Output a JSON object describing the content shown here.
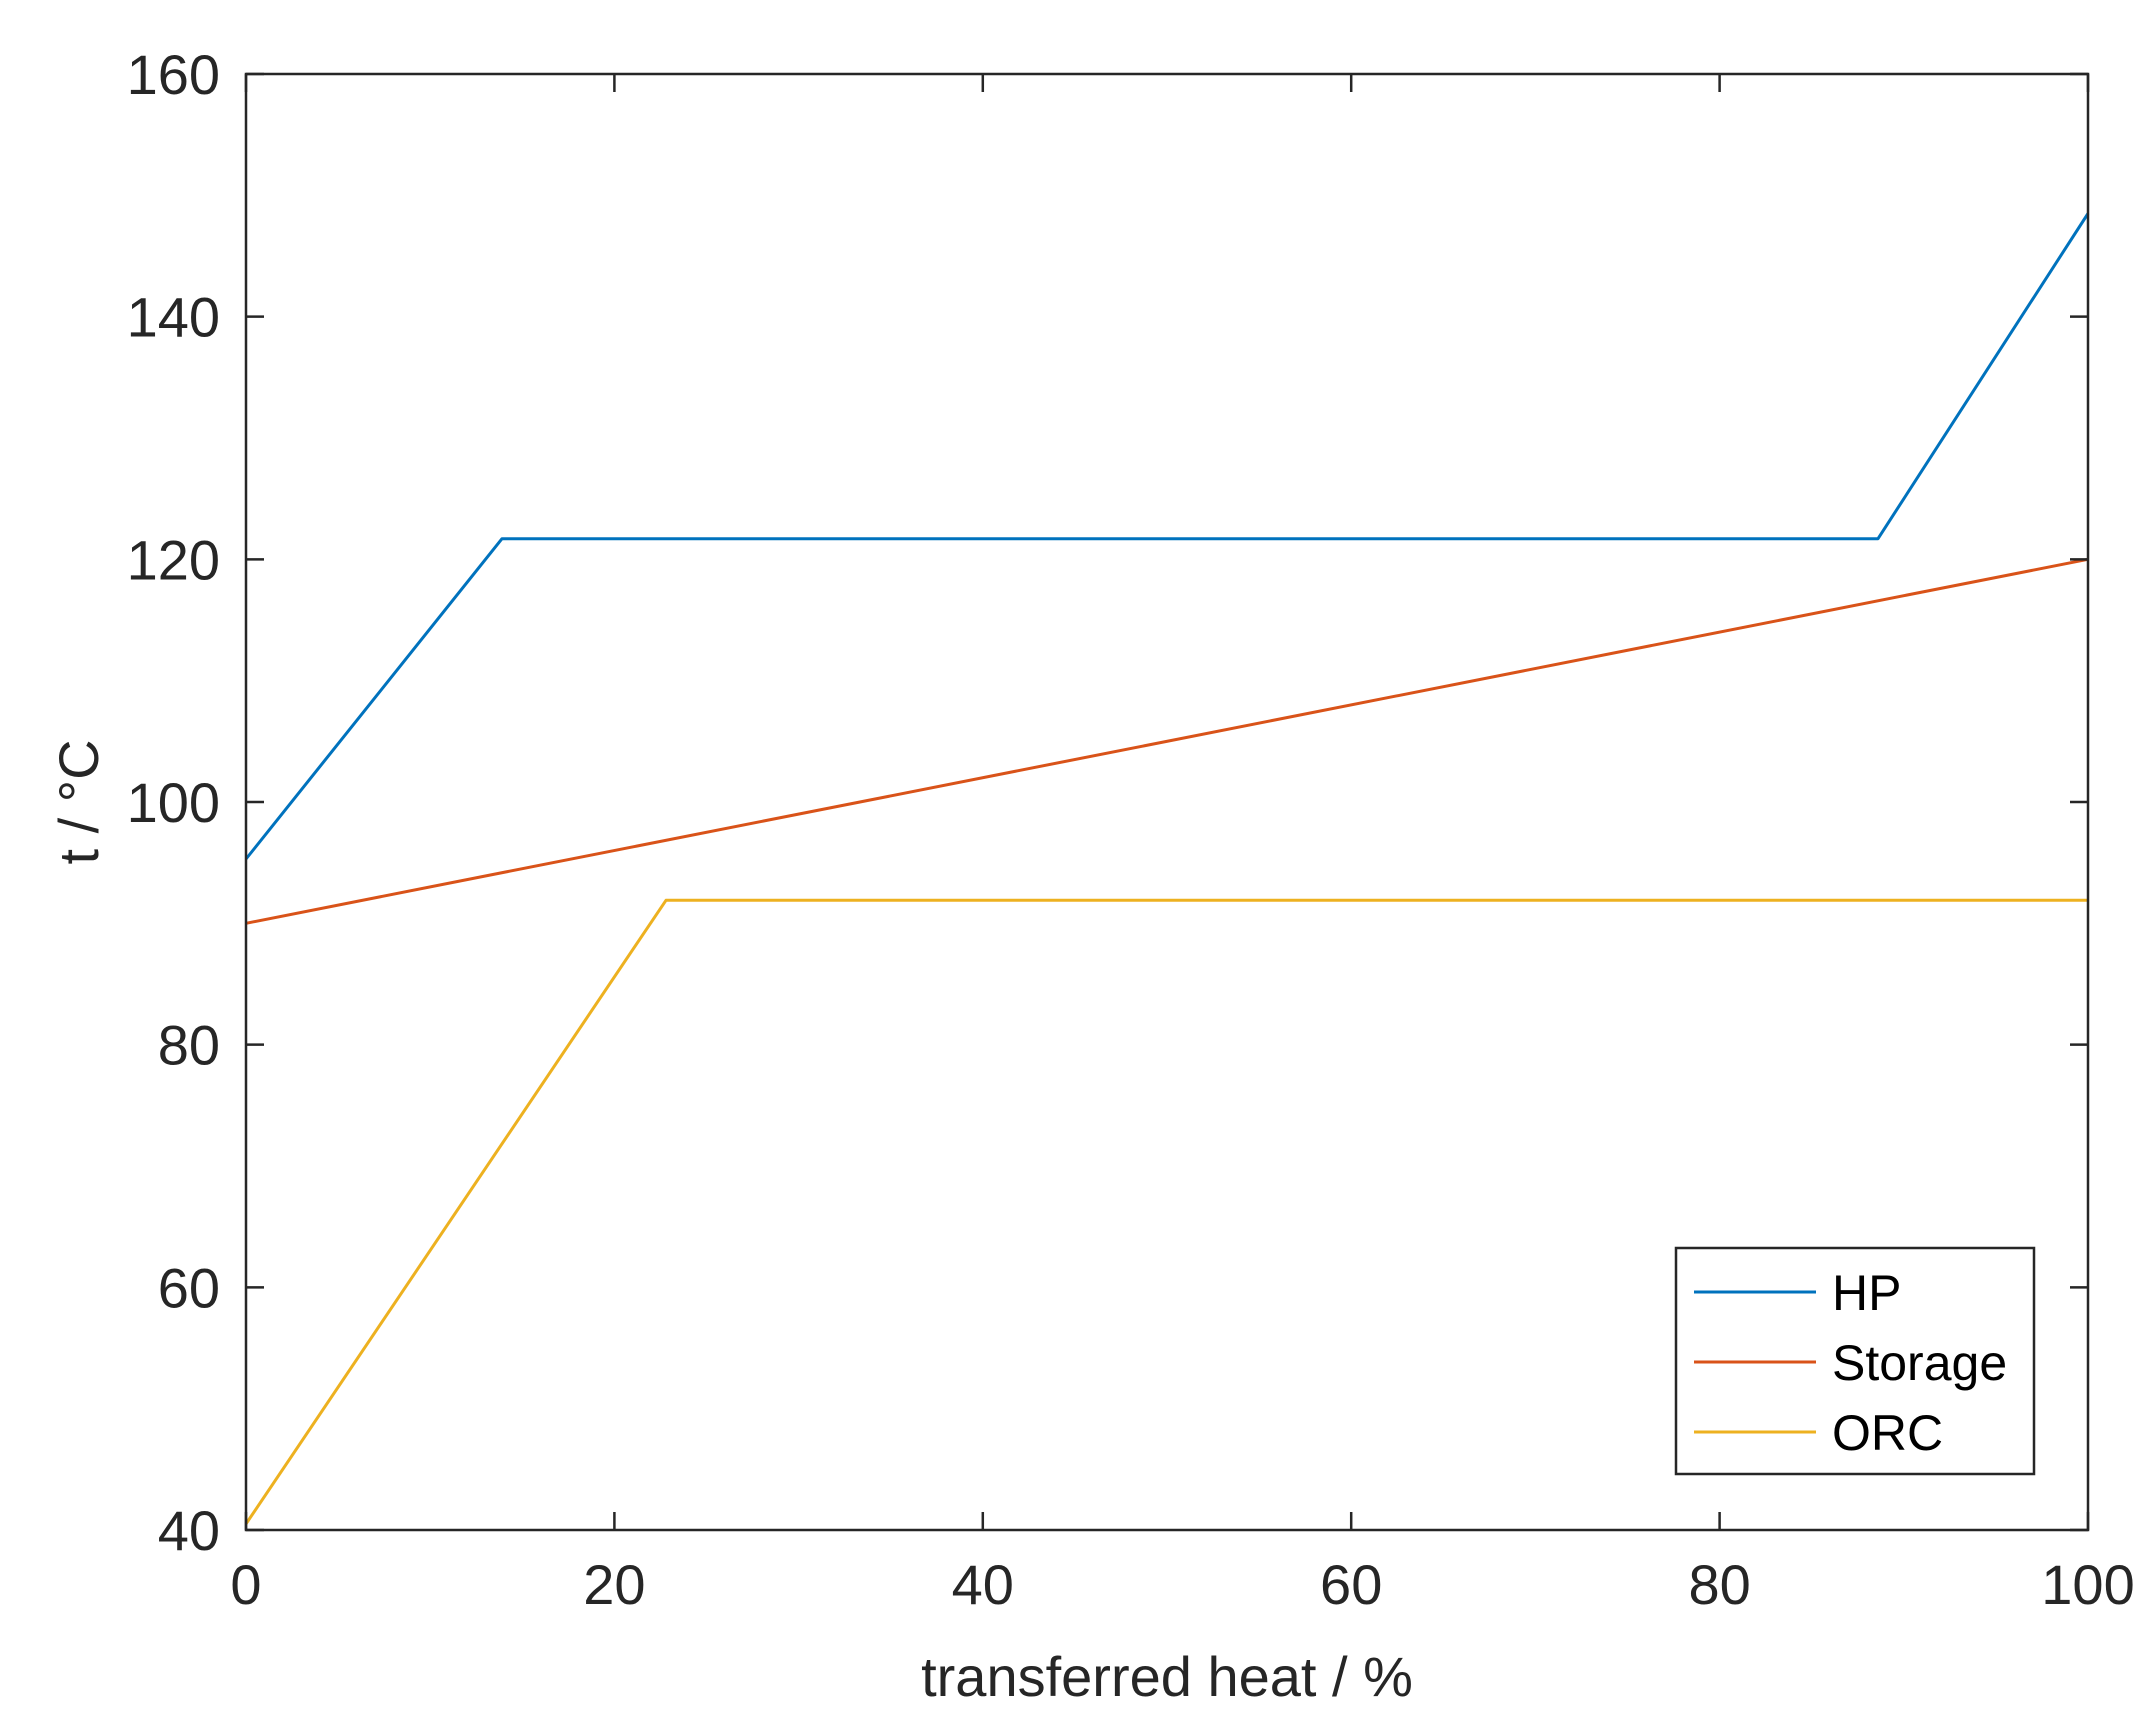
{
  "chart_data": {
    "type": "line",
    "xlabel": "transferred heat / %",
    "ylabel": "t / °C",
    "xlim": [
      0,
      100
    ],
    "ylim": [
      40,
      160
    ],
    "xticks": [
      0,
      20,
      40,
      60,
      80,
      100
    ],
    "yticks": [
      40,
      60,
      80,
      100,
      120,
      140,
      160
    ],
    "xtick_labels": [
      "0",
      "20",
      "40",
      "60",
      "80",
      "100"
    ],
    "ytick_labels": [
      "40",
      "60",
      "80",
      "100",
      "120",
      "140",
      "160"
    ],
    "grid": false,
    "legend_position": "bottom-right",
    "series": [
      {
        "name": "HP",
        "color": "#0072BD",
        "x": [
          0,
          13.9,
          88.6,
          100
        ],
        "y": [
          95.3,
          121.7,
          121.7,
          148.5
        ]
      },
      {
        "name": "Storage",
        "color": "#D95319",
        "x": [
          0,
          100
        ],
        "y": [
          90.0,
          120.0
        ]
      },
      {
        "name": "ORC",
        "color": "#EDB120",
        "x": [
          0,
          22.8,
          100
        ],
        "y": [
          40.5,
          91.9,
          91.9
        ]
      }
    ]
  }
}
